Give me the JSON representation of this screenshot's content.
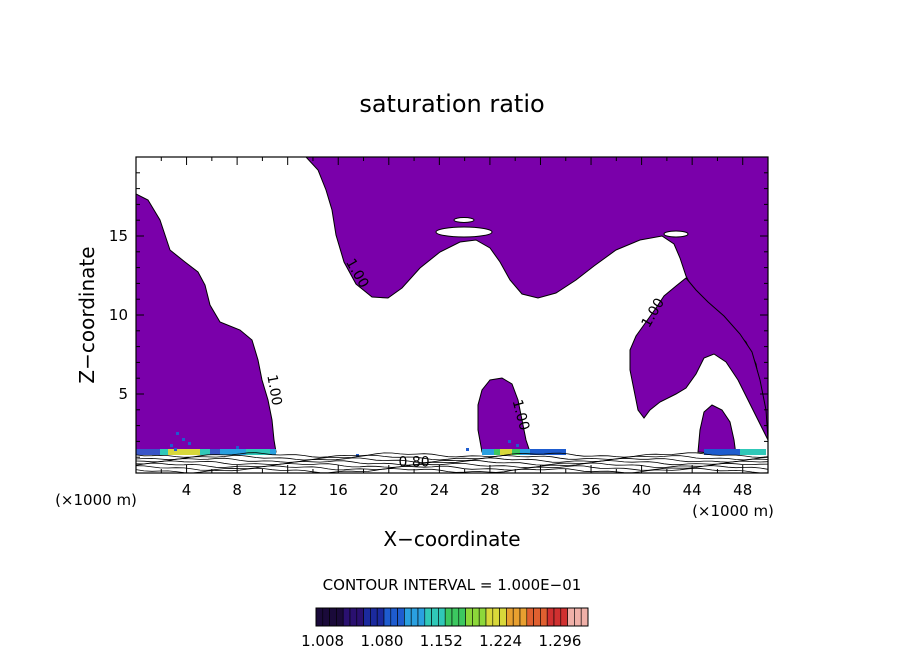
{
  "chart_data": {
    "type": "contour",
    "title": "saturation ratio",
    "xlabel": "X−coordinate",
    "ylabel": "Z−coordinate",
    "x_unit": "(×1000 m)",
    "z_unit": "(×1000 m)",
    "xlim": [
      0,
      50
    ],
    "ylim": [
      0,
      20
    ],
    "x_ticks": [
      4,
      8,
      12,
      16,
      20,
      24,
      28,
      32,
      36,
      40,
      44,
      48
    ],
    "y_ticks": [
      5,
      10,
      15
    ],
    "contour_interval_text": "CONTOUR INTERVAL = 1.000E−01",
    "contour_labels": [
      {
        "text": "1.00",
        "x": 17.2,
        "y": 12.5
      },
      {
        "text": "1.00",
        "x": 41.2,
        "y": 10.0
      },
      {
        "text": "1.00",
        "x": 10.6,
        "y": 5.2
      },
      {
        "text": "1.00",
        "x": 30.1,
        "y": 3.6
      },
      {
        "text": "0.80",
        "x": 22.0,
        "y": 0.4
      }
    ],
    "colorbar": {
      "ticks": [
        "1.008",
        "1.080",
        "1.152",
        "1.224",
        "1.296"
      ],
      "min": 1.0,
      "max": 1.33,
      "colors": [
        "#1a0a3a",
        "#2a1070",
        "#1b2a9e",
        "#1e5ccf",
        "#2aa0e0",
        "#30c8b8",
        "#3cc860",
        "#8cd83a",
        "#d8d83a",
        "#e8a030",
        "#e06030",
        "#d03030",
        "#f0b0a8"
      ]
    },
    "fill_color": "#7a00aa"
  }
}
